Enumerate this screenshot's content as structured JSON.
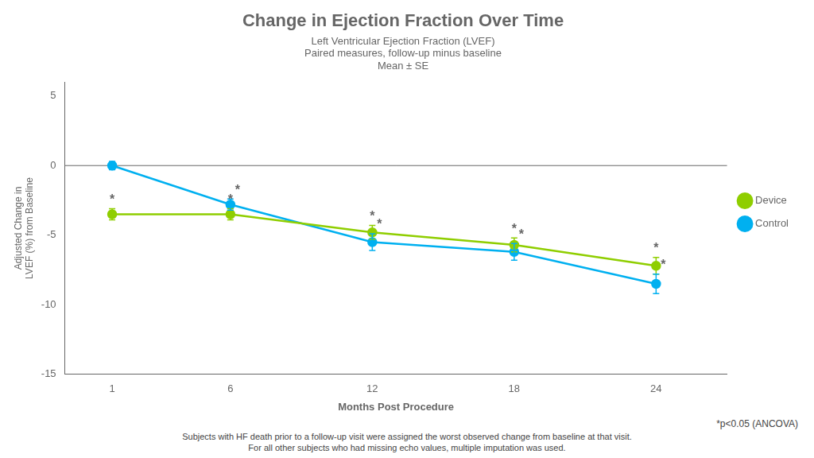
{
  "chart_data": {
    "type": "line",
    "title": "Change in Ejection Fraction Over Time",
    "subtitle": [
      "Left Ventricular Ejection Fraction (LVEF)",
      "Paired measures, follow-up minus baseline",
      "Mean ± SE"
    ],
    "x": [
      1,
      6,
      12,
      18,
      24
    ],
    "series": [
      {
        "name": "Device",
        "color": "#8fce00",
        "values": [
          -3.5,
          -3.5,
          -4.8,
          -5.7,
          -7.2
        ],
        "errors": [
          0.4,
          0.4,
          0.5,
          0.5,
          0.6
        ],
        "marker": "circle",
        "line_style": "solid"
      },
      {
        "name": "Control",
        "color": "#00b0f0",
        "values": [
          0.0,
          -2.8,
          -5.5,
          -6.2,
          -8.5
        ],
        "errors": [
          0.3,
          0.4,
          0.6,
          0.6,
          0.7
        ],
        "marker": "circle",
        "line_style": "solid"
      }
    ],
    "xlabel": "Months Post Procedure",
    "ylabel": "Adjusted Change in\nLVEF (%) from Baseline",
    "xlim": [
      -1,
      27
    ],
    "xticks": [
      1,
      6,
      12,
      18,
      24
    ],
    "ylim": [
      -15,
      6
    ],
    "yticks": [
      -15,
      -10,
      -5,
      0,
      5
    ],
    "grid": false,
    "legend": "right",
    "hlines": [
      0
    ],
    "annotations": [
      {
        "text": "*",
        "x": 1,
        "series": "Device"
      },
      {
        "text": "*",
        "x": 6,
        "series": "Device"
      },
      {
        "text": "*",
        "x": 12,
        "series": "Device"
      },
      {
        "text": "*",
        "x": 18,
        "series": "Device"
      },
      {
        "text": "*",
        "x": 24,
        "series": "Device"
      },
      {
        "text": "*",
        "x": 6,
        "series": "Control"
      },
      {
        "text": "*",
        "x": 12,
        "series": "Control"
      },
      {
        "text": "*",
        "x": 18,
        "series": "Control"
      },
      {
        "text": "*",
        "x": 24,
        "series": "Control"
      }
    ],
    "note": "*p<0.05 (ANCOVA)",
    "footnotes": [
      "Subjects with HF death prior to a follow-up visit were assigned the worst observed change from baseline at that visit.",
      "For all other subjects who had missing echo values, multiple imputation was used."
    ]
  }
}
